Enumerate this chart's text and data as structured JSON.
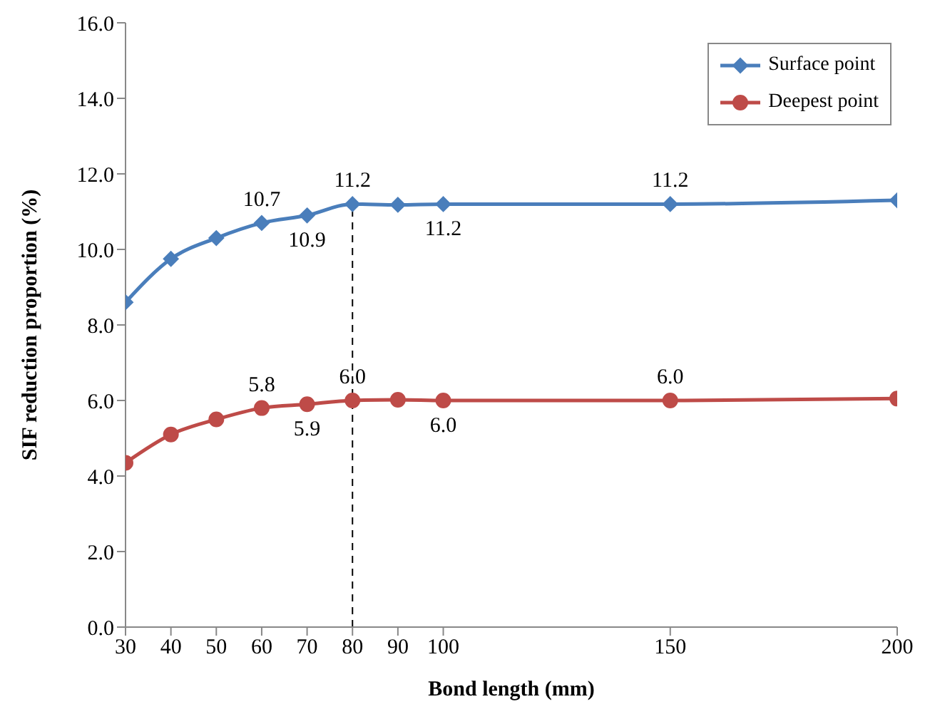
{
  "chart_data": {
    "type": "line",
    "xlabel": "Bond length (mm)",
    "ylabel": "SIF reduction proportion (%)",
    "x": [
      30,
      40,
      50,
      60,
      70,
      80,
      90,
      100,
      150,
      200
    ],
    "series": [
      {
        "name": "Surface point",
        "color": "#4a7ebb",
        "marker": "diamond",
        "values": [
          8.6,
          9.75,
          10.3,
          10.7,
          10.9,
          11.2,
          11.18,
          11.2,
          11.2,
          11.3
        ],
        "value_labels": [
          null,
          null,
          null,
          "10.7",
          "10.9",
          "11.2",
          null,
          "11.2",
          "11.2",
          null
        ]
      },
      {
        "name": "Deepest point",
        "color": "#be4b48",
        "marker": "circle",
        "values": [
          4.35,
          5.1,
          5.5,
          5.8,
          5.9,
          6.0,
          6.02,
          6.0,
          6.0,
          6.05
        ],
        "value_labels": [
          null,
          null,
          null,
          "5.8",
          "5.9",
          "6.0",
          null,
          "6.0",
          "6.0",
          null
        ]
      }
    ],
    "xlim": [
      30,
      200
    ],
    "xticks": [
      30,
      40,
      50,
      60,
      70,
      80,
      90,
      100,
      150,
      200
    ],
    "ylim": [
      0,
      16
    ],
    "yticks": [
      {
        "value": 0,
        "label": "0.0"
      },
      {
        "value": 2,
        "label": "2.0"
      },
      {
        "value": 4,
        "label": "4.0"
      },
      {
        "value": 6,
        "label": "6.0"
      },
      {
        "value": 8,
        "label": "8.0"
      },
      {
        "value": 10,
        "label": "10.0"
      },
      {
        "value": 12,
        "label": "12.0"
      },
      {
        "value": 14,
        "label": "14.0"
      },
      {
        "value": 16,
        "label": "16.0"
      }
    ],
    "ref_lines": [
      {
        "axis": "x",
        "value": 80,
        "color": "#000000",
        "line_style": "dashed"
      }
    ],
    "grid": false,
    "legend": "top right",
    "line_style": "solid"
  }
}
